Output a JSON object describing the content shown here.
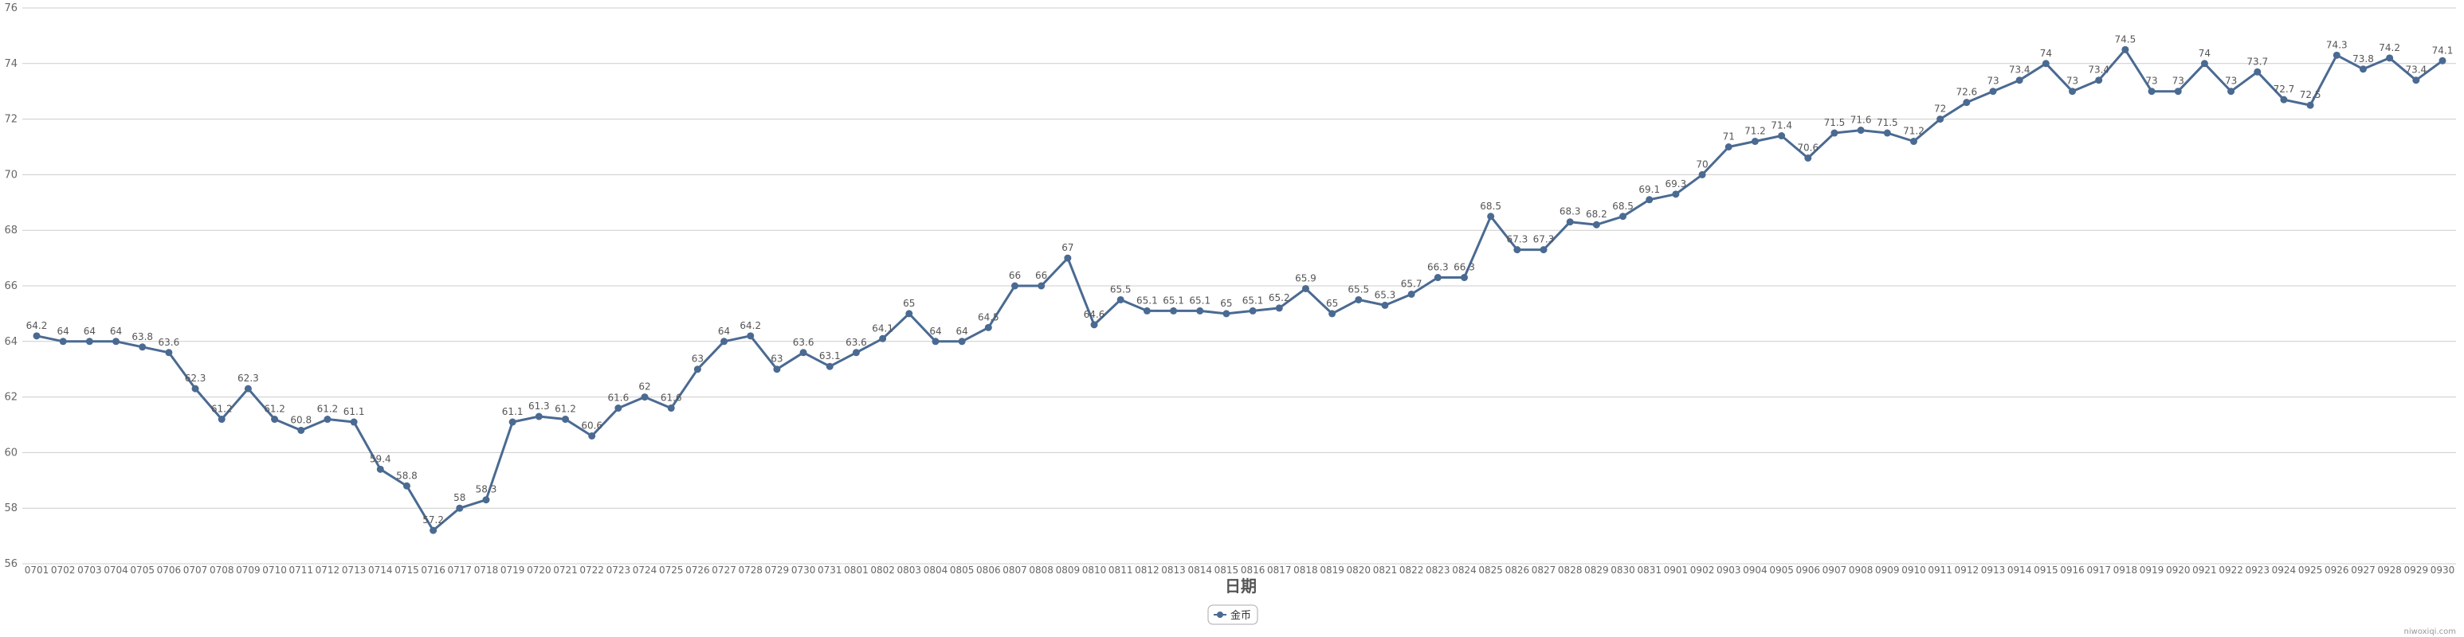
{
  "chart_data": {
    "type": "line",
    "title": "",
    "xlabel": "日期",
    "ylabel": "",
    "ylim": [
      56,
      76
    ],
    "yticks": [
      56,
      58,
      60,
      62,
      64,
      66,
      68,
      70,
      72,
      74,
      76
    ],
    "grid": true,
    "legend_position": "bottom-center",
    "watermark": "niwoxiqi.com",
    "color": "#4a6a92",
    "categories": [
      "0701",
      "0702",
      "0703",
      "0704",
      "0705",
      "0706",
      "0707",
      "0708",
      "0709",
      "0710",
      "0711",
      "0712",
      "0713",
      "0714",
      "0715",
      "0716",
      "0717",
      "0718",
      "0719",
      "0720",
      "0721",
      "0722",
      "0723",
      "0724",
      "0725",
      "0726",
      "0727",
      "0728",
      "0729",
      "0730",
      "0731",
      "0801",
      "0802",
      "0803",
      "0804",
      "0805",
      "0806",
      "0807",
      "0808",
      "0809",
      "0810",
      "0811",
      "0812",
      "0813",
      "0814",
      "0815",
      "0816",
      "0817",
      "0818",
      "0819",
      "0820",
      "0821",
      "0822",
      "0823",
      "0824",
      "0825",
      "0826",
      "0827",
      "0828",
      "0829",
      "0830",
      "0831",
      "0901",
      "0902",
      "0903",
      "0904",
      "0905",
      "0906",
      "0907",
      "0908",
      "0909",
      "0910",
      "0911",
      "0912",
      "0913",
      "0914",
      "0915",
      "0916",
      "0917",
      "0918",
      "0919",
      "0920",
      "0921",
      "0922",
      "0923",
      "0924",
      "0925",
      "0926",
      "0927",
      "0928",
      "0929",
      "0930"
    ],
    "series": [
      {
        "name": "金币",
        "values": [
          64.2,
          64,
          64,
          64,
          63.8,
          63.6,
          62.3,
          61.2,
          62.3,
          61.2,
          60.8,
          61.2,
          61.1,
          59.4,
          58.8,
          57.2,
          58,
          58.3,
          61.1,
          61.3,
          61.2,
          60.6,
          61.6,
          62,
          61.6,
          63,
          64,
          64.2,
          63,
          63.6,
          63.1,
          63.6,
          64.1,
          65,
          64,
          64,
          64.5,
          66,
          66,
          67,
          64.6,
          65.5,
          65.1,
          65.1,
          65.1,
          65,
          65.1,
          65.2,
          65.9,
          65,
          65.5,
          65.3,
          65.7,
          66.3,
          66.3,
          68.5,
          67.3,
          67.3,
          68.3,
          68.2,
          68.5,
          69.1,
          69.3,
          70,
          71,
          71.2,
          71.4,
          70.6,
          71.5,
          71.6,
          71.5,
          71.2,
          72,
          72.6,
          73,
          73.4,
          74,
          73,
          73.4,
          74.5,
          73,
          73,
          74,
          73,
          73.7,
          72.7,
          72.5,
          74.3,
          73.8,
          74.2,
          73.4,
          74.1
        ]
      }
    ]
  }
}
